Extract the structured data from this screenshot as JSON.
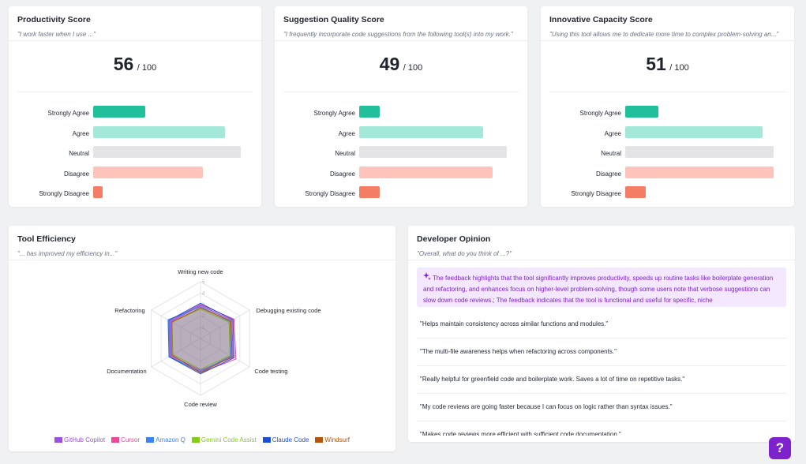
{
  "cards": [
    {
      "title": "Productivity Score",
      "subtitle": "\"I work faster when I use ...\"",
      "score": "56",
      "denominator": "/ 100",
      "bars": [
        {
          "label": "Strongly Agree",
          "value": 0.33,
          "color": "#21c09a"
        },
        {
          "label": "Agree",
          "value": 0.84,
          "color": "#a3e8d9"
        },
        {
          "label": "Neutral",
          "value": 0.94,
          "color": "#e4e4e6"
        },
        {
          "label": "Disagree",
          "value": 0.7,
          "color": "#fdc4bb"
        },
        {
          "label": "Strongly Disagree",
          "value": 0.06,
          "color": "#f47d66"
        }
      ]
    },
    {
      "title": "Suggestion Quality Score",
      "subtitle": "\"I frequently incorporate code suggestions from the following tool(s) into my work.\"",
      "score": "49",
      "denominator": "/ 100",
      "bars": [
        {
          "label": "Strongly Agree",
          "value": 0.13,
          "color": "#21c09a"
        },
        {
          "label": "Agree",
          "value": 0.79,
          "color": "#a3e8d9"
        },
        {
          "label": "Neutral",
          "value": 0.94,
          "color": "#e4e4e6"
        },
        {
          "label": "Disagree",
          "value": 0.85,
          "color": "#fdc4bb"
        },
        {
          "label": "Strongly Disagree",
          "value": 0.13,
          "color": "#f47d66"
        }
      ]
    },
    {
      "title": "Innovative Capacity Score",
      "subtitle": "\"Using this tool allows me to dedicate more time to complex problem-solving an...\"",
      "score": "51",
      "denominator": "/ 100",
      "bars": [
        {
          "label": "Strongly Agree",
          "value": 0.21,
          "color": "#21c09a"
        },
        {
          "label": "Agree",
          "value": 0.87,
          "color": "#a3e8d9"
        },
        {
          "label": "Neutral",
          "value": 0.94,
          "color": "#e4e4e6"
        },
        {
          "label": "Disagree",
          "value": 0.94,
          "color": "#fdc4bb"
        },
        {
          "label": "Strongly Disagree",
          "value": 0.13,
          "color": "#f47d66"
        }
      ]
    }
  ],
  "tool_efficiency": {
    "title": "Tool Efficiency",
    "subtitle": "\"... has improved my efficiency in...\""
  },
  "chart_data": {
    "type": "radar",
    "categories": [
      "Writing new code",
      "Debugging existing code",
      "Code testing",
      "Code review",
      "Documentation",
      "Refactoring"
    ],
    "rlim": [
      0,
      5
    ],
    "ticks": [
      "1",
      "2",
      "3",
      "4",
      "5"
    ],
    "series": [
      {
        "name": "GitHub Copilot",
        "color": "#9b51e0",
        "values": [
          2.9,
          3.2,
          3.3,
          2.8,
          3.0,
          3.0
        ]
      },
      {
        "name": "Cursor",
        "color": "#ec4899",
        "values": [
          3.0,
          3.4,
          3.6,
          3.0,
          3.1,
          3.1
        ]
      },
      {
        "name": "Amazon Q",
        "color": "#3b82f6",
        "values": [
          2.8,
          3.0,
          3.1,
          2.9,
          3.2,
          3.3
        ]
      },
      {
        "name": "Gemini Code Assist",
        "color": "#84cc16",
        "values": [
          2.6,
          2.9,
          3.0,
          2.7,
          2.8,
          2.9
        ]
      },
      {
        "name": "Claude Code",
        "color": "#1d4ed8",
        "values": [
          3.1,
          3.3,
          3.4,
          3.1,
          3.2,
          3.2
        ]
      },
      {
        "name": "Windsurf",
        "color": "#b45309",
        "values": [
          2.7,
          3.1,
          3.2,
          3.0,
          2.9,
          2.9
        ]
      }
    ]
  },
  "developer_opinion": {
    "title": "Developer Opinion",
    "subtitle": "\"Overall, what do you think of ...?\"",
    "summary_icon": "sparkle-icon",
    "summary": "The feedback highlights that the tool significantly improves productivity, speeds up routine tasks like boilerplate generation and refactoring, and enhances focus on higher-level problem-solving, though some users note that verbose suggestions can slow down code reviews.; The feedback indicates that the tool is functional and useful for specific, niche",
    "quotes": [
      "\"Helps maintain consistency across similar functions and modules.\"",
      "\"The multi-file awareness helps when refactoring across components.\"",
      "\"Really helpful for greenfield code and boilerplate work. Saves a lot of time on repetitive tasks.\"",
      "\"My code reviews are going faster because I can focus on logic rather than syntax issues.\"",
      "\"Makes code reviews more efficient with sufficient code documentation.\""
    ]
  },
  "help_button": {
    "label": "?",
    "icon": "question-icon"
  }
}
